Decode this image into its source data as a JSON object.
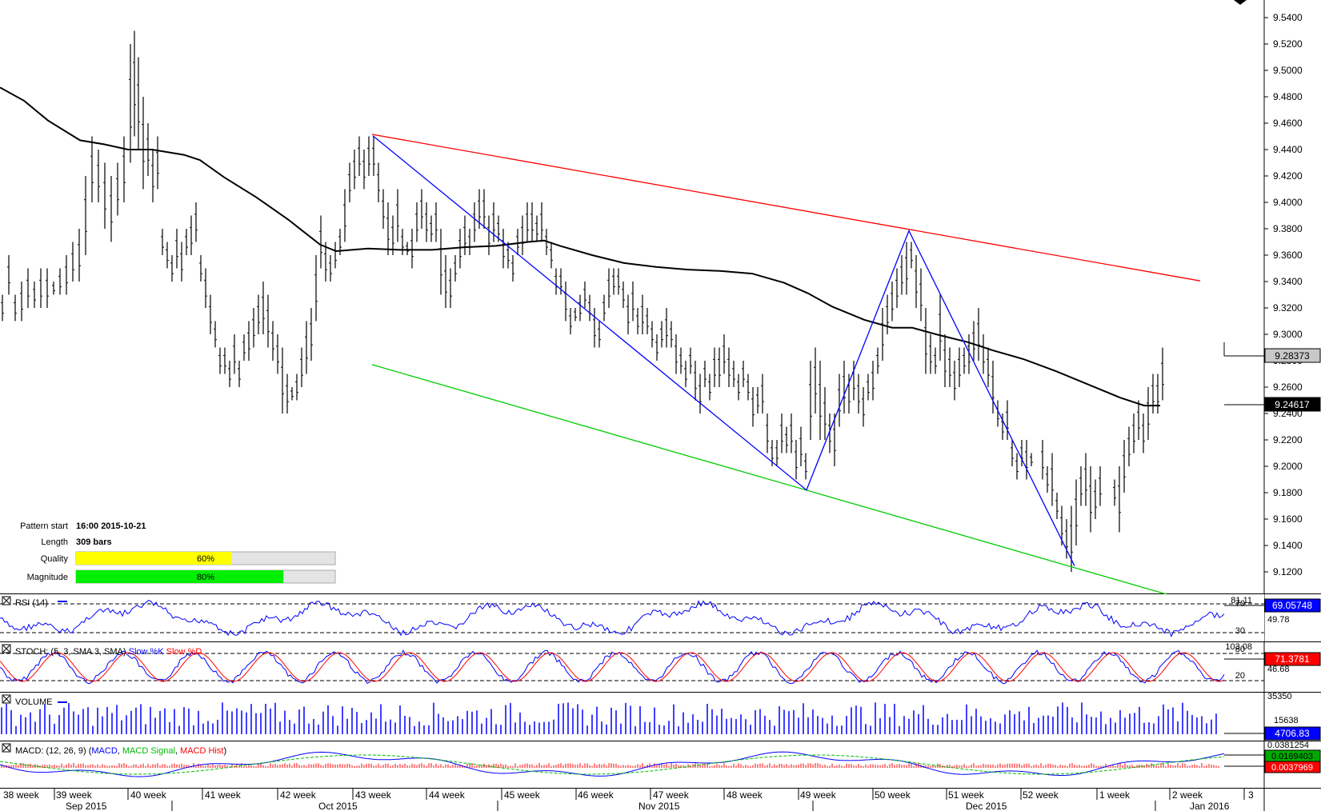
{
  "chart_data": {
    "type": "ohlc",
    "instrument_scale": "price",
    "y_ticks": [
      "9.5400",
      "9.5200",
      "9.5000",
      "9.4800",
      "9.4600",
      "9.4400",
      "9.4200",
      "9.4000",
      "9.3800",
      "9.3600",
      "9.3400",
      "9.3200",
      "9.3000",
      "9.2800",
      "9.2600",
      "9.2400",
      "9.2200",
      "9.2000",
      "9.1800",
      "9.1600",
      "9.1400",
      "9.1200"
    ],
    "ylim": [
      9.11,
      9.555
    ],
    "price_labels": {
      "current": "9.28373",
      "moving_average": "9.24617"
    },
    "moving_average": [
      [
        0,
        9.487
      ],
      [
        30,
        9.477
      ],
      [
        60,
        9.462
      ],
      [
        100,
        9.447
      ],
      [
        130,
        9.444
      ],
      [
        160,
        9.44
      ],
      [
        190,
        9.44
      ],
      [
        230,
        9.436
      ],
      [
        250,
        9.432
      ],
      [
        280,
        9.419
      ],
      [
        320,
        9.404
      ],
      [
        360,
        9.387
      ],
      [
        400,
        9.368
      ],
      [
        420,
        9.363
      ],
      [
        460,
        9.365
      ],
      [
        500,
        9.364
      ],
      [
        540,
        9.364
      ],
      [
        580,
        9.366
      ],
      [
        620,
        9.367
      ],
      [
        660,
        9.37
      ],
      [
        680,
        9.371
      ],
      [
        700,
        9.367
      ],
      [
        740,
        9.36
      ],
      [
        780,
        9.354
      ],
      [
        820,
        9.351
      ],
      [
        860,
        9.349
      ],
      [
        900,
        9.348
      ],
      [
        940,
        9.346
      ],
      [
        980,
        9.339
      ],
      [
        1010,
        9.331
      ],
      [
        1040,
        9.321
      ],
      [
        1080,
        9.311
      ],
      [
        1115,
        9.305
      ],
      [
        1140,
        9.305
      ],
      [
        1170,
        9.3
      ],
      [
        1210,
        9.294
      ],
      [
        1240,
        9.288
      ],
      [
        1280,
        9.281
      ],
      [
        1320,
        9.272
      ],
      [
        1360,
        9.262
      ],
      [
        1400,
        9.252
      ],
      [
        1430,
        9.246
      ],
      [
        1450,
        9.246
      ]
    ],
    "bars": [
      [
        0,
        9.33,
        9.31
      ],
      [
        8,
        9.36,
        9.33
      ],
      [
        16,
        9.33,
        9.31
      ],
      [
        24,
        9.34,
        9.31
      ],
      [
        32,
        9.35,
        9.32
      ],
      [
        40,
        9.34,
        9.32
      ],
      [
        48,
        9.35,
        9.32
      ],
      [
        56,
        9.35,
        9.32
      ],
      [
        64,
        9.34,
        9.33
      ],
      [
        72,
        9.35,
        9.33
      ],
      [
        80,
        9.36,
        9.33
      ],
      [
        88,
        9.37,
        9.34
      ],
      [
        96,
        9.38,
        9.34
      ],
      [
        104,
        9.42,
        9.36
      ],
      [
        112,
        9.45,
        9.4
      ],
      [
        120,
        9.44,
        9.4
      ],
      [
        128,
        9.43,
        9.38
      ],
      [
        136,
        9.42,
        9.37
      ],
      [
        144,
        9.43,
        9.39
      ],
      [
        152,
        9.45,
        9.4
      ],
      [
        160,
        9.52,
        9.43
      ],
      [
        165,
        9.53,
        9.45
      ],
      [
        170,
        9.51,
        9.44
      ],
      [
        176,
        9.48,
        9.41
      ],
      [
        182,
        9.46,
        9.42
      ],
      [
        188,
        9.44,
        9.4
      ],
      [
        194,
        9.45,
        9.41
      ],
      [
        200,
        9.38,
        9.36
      ],
      [
        206,
        9.37,
        9.35
      ],
      [
        212,
        9.36,
        9.34
      ],
      [
        218,
        9.38,
        9.35
      ],
      [
        224,
        9.37,
        9.34
      ],
      [
        230,
        9.38,
        9.36
      ],
      [
        236,
        9.39,
        9.36
      ],
      [
        242,
        9.4,
        9.37
      ],
      [
        248,
        9.36,
        9.34
      ],
      [
        254,
        9.35,
        9.32
      ],
      [
        260,
        9.33,
        9.3
      ],
      [
        266,
        9.31,
        9.29
      ],
      [
        272,
        9.29,
        9.27
      ],
      [
        278,
        9.29,
        9.27
      ],
      [
        284,
        9.28,
        9.26
      ],
      [
        290,
        9.3,
        9.27
      ],
      [
        296,
        9.28,
        9.26
      ],
      [
        302,
        9.3,
        9.28
      ],
      [
        308,
        9.31,
        9.28
      ],
      [
        314,
        9.32,
        9.29
      ],
      [
        320,
        9.33,
        9.3
      ],
      [
        326,
        9.34,
        9.3
      ],
      [
        332,
        9.33,
        9.29
      ],
      [
        338,
        9.31,
        9.28
      ],
      [
        344,
        9.3,
        9.27
      ],
      [
        350,
        9.29,
        9.24
      ],
      [
        356,
        9.27,
        9.24
      ],
      [
        362,
        9.26,
        9.25
      ],
      [
        368,
        9.27,
        9.25
      ],
      [
        374,
        9.29,
        9.26
      ],
      [
        380,
        9.31,
        9.27
      ],
      [
        386,
        9.32,
        9.28
      ],
      [
        392,
        9.36,
        9.31
      ],
      [
        398,
        9.39,
        9.35
      ],
      [
        404,
        9.37,
        9.34
      ],
      [
        410,
        9.36,
        9.34
      ],
      [
        416,
        9.37,
        9.35
      ],
      [
        422,
        9.38,
        9.36
      ],
      [
        428,
        9.41,
        9.37
      ],
      [
        434,
        9.43,
        9.4
      ],
      [
        440,
        9.44,
        9.41
      ],
      [
        446,
        9.45,
        9.42
      ],
      [
        452,
        9.44,
        9.41
      ],
      [
        458,
        9.45,
        9.42
      ],
      [
        464,
        9.45,
        9.42
      ],
      [
        470,
        9.43,
        9.4
      ],
      [
        476,
        9.41,
        9.38
      ],
      [
        482,
        9.4,
        9.36
      ],
      [
        488,
        9.39,
        9.36
      ],
      [
        494,
        9.41,
        9.37
      ],
      [
        500,
        9.38,
        9.36
      ],
      [
        506,
        9.37,
        9.36
      ],
      [
        512,
        9.38,
        9.35
      ],
      [
        518,
        9.4,
        9.37
      ],
      [
        524,
        9.41,
        9.38
      ],
      [
        530,
        9.4,
        9.37
      ],
      [
        536,
        9.39,
        9.37
      ],
      [
        542,
        9.4,
        9.37
      ],
      [
        548,
        9.38,
        9.33
      ],
      [
        554,
        9.36,
        9.32
      ],
      [
        560,
        9.35,
        9.32
      ],
      [
        566,
        9.36,
        9.34
      ],
      [
        572,
        9.38,
        9.35
      ],
      [
        578,
        9.39,
        9.36
      ],
      [
        584,
        9.38,
        9.36
      ],
      [
        590,
        9.4,
        9.37
      ],
      [
        596,
        9.41,
        9.38
      ],
      [
        602,
        9.41,
        9.38
      ],
      [
        608,
        9.39,
        9.36
      ],
      [
        614,
        9.4,
        9.37
      ],
      [
        620,
        9.39,
        9.37
      ],
      [
        626,
        9.38,
        9.35
      ],
      [
        632,
        9.37,
        9.35
      ],
      [
        638,
        9.36,
        9.34
      ],
      [
        644,
        9.38,
        9.36
      ],
      [
        650,
        9.39,
        9.36
      ],
      [
        656,
        9.4,
        9.37
      ],
      [
        662,
        9.4,
        9.37
      ],
      [
        668,
        9.39,
        9.37
      ],
      [
        674,
        9.4,
        9.37
      ],
      [
        680,
        9.38,
        9.36
      ],
      [
        686,
        9.37,
        9.35
      ],
      [
        692,
        9.35,
        9.33
      ],
      [
        698,
        9.35,
        9.33
      ],
      [
        704,
        9.34,
        9.31
      ],
      [
        710,
        9.32,
        9.3
      ],
      [
        716,
        9.32,
        9.31
      ],
      [
        722,
        9.33,
        9.31
      ],
      [
        728,
        9.34,
        9.32
      ],
      [
        734,
        9.33,
        9.31
      ],
      [
        740,
        9.32,
        9.29
      ],
      [
        746,
        9.31,
        9.29
      ],
      [
        752,
        9.33,
        9.31
      ],
      [
        758,
        9.35,
        9.32
      ],
      [
        764,
        9.35,
        9.33
      ],
      [
        770,
        9.35,
        9.33
      ],
      [
        776,
        9.34,
        9.32
      ],
      [
        782,
        9.33,
        9.3
      ],
      [
        788,
        9.34,
        9.31
      ],
      [
        794,
        9.32,
        9.3
      ],
      [
        800,
        9.33,
        9.3
      ],
      [
        806,
        9.32,
        9.3
      ],
      [
        812,
        9.31,
        9.29
      ],
      [
        818,
        9.3,
        9.28
      ],
      [
        824,
        9.31,
        9.29
      ],
      [
        830,
        9.32,
        9.29
      ],
      [
        836,
        9.31,
        9.29
      ],
      [
        842,
        9.3,
        9.27
      ],
      [
        848,
        9.29,
        9.27
      ],
      [
        854,
        9.28,
        9.26
      ],
      [
        860,
        9.29,
        9.27
      ],
      [
        866,
        9.28,
        9.25
      ],
      [
        872,
        9.27,
        9.24
      ],
      [
        878,
        9.28,
        9.26
      ],
      [
        884,
        9.27,
        9.25
      ],
      [
        890,
        9.29,
        9.26
      ],
      [
        896,
        9.29,
        9.26
      ],
      [
        902,
        9.3,
        9.27
      ],
      [
        908,
        9.29,
        9.26
      ],
      [
        914,
        9.28,
        9.26
      ],
      [
        920,
        9.27,
        9.25
      ],
      [
        926,
        9.28,
        9.26
      ],
      [
        932,
        9.27,
        9.25
      ],
      [
        938,
        9.26,
        9.23
      ],
      [
        944,
        9.26,
        9.24
      ],
      [
        950,
        9.27,
        9.24
      ],
      [
        956,
        9.24,
        9.21
      ],
      [
        962,
        9.22,
        9.2
      ],
      [
        968,
        9.22,
        9.2
      ],
      [
        974,
        9.24,
        9.21
      ],
      [
        980,
        9.23,
        9.21
      ],
      [
        986,
        9.24,
        9.21
      ],
      [
        992,
        9.22,
        9.19
      ],
      [
        998,
        9.23,
        9.2
      ],
      [
        1004,
        9.21,
        9.19
      ],
      [
        1010,
        9.28,
        9.22
      ],
      [
        1016,
        9.29,
        9.24
      ],
      [
        1022,
        9.28,
        9.22
      ],
      [
        1028,
        9.26,
        9.22
      ],
      [
        1034,
        9.24,
        9.21
      ],
      [
        1040,
        9.24,
        9.2
      ],
      [
        1046,
        9.27,
        9.23
      ],
      [
        1052,
        9.28,
        9.24
      ],
      [
        1058,
        9.27,
        9.24
      ],
      [
        1064,
        9.28,
        9.25
      ],
      [
        1070,
        9.27,
        9.24
      ],
      [
        1076,
        9.26,
        9.23
      ],
      [
        1082,
        9.27,
        9.25
      ],
      [
        1088,
        9.28,
        9.25
      ],
      [
        1094,
        9.29,
        9.27
      ],
      [
        1100,
        9.32,
        9.28
      ],
      [
        1106,
        9.33,
        9.3
      ],
      [
        1112,
        9.34,
        9.31
      ],
      [
        1118,
        9.35,
        9.32
      ],
      [
        1124,
        9.36,
        9.33
      ],
      [
        1130,
        9.37,
        9.33
      ],
      [
        1136,
        9.37,
        9.35
      ],
      [
        1142,
        9.36,
        9.32
      ],
      [
        1148,
        9.35,
        9.31
      ],
      [
        1154,
        9.32,
        9.27
      ],
      [
        1160,
        9.3,
        9.27
      ],
      [
        1166,
        9.29,
        9.27
      ],
      [
        1172,
        9.33,
        9.28
      ],
      [
        1178,
        9.3,
        9.26
      ],
      [
        1184,
        9.29,
        9.26
      ],
      [
        1190,
        9.28,
        9.25
      ],
      [
        1196,
        9.29,
        9.26
      ],
      [
        1202,
        9.29,
        9.27
      ],
      [
        1208,
        9.3,
        9.27
      ],
      [
        1214,
        9.31,
        9.28
      ],
      [
        1220,
        9.32,
        9.28
      ],
      [
        1226,
        9.3,
        9.27
      ],
      [
        1232,
        9.29,
        9.26
      ],
      [
        1238,
        9.28,
        9.24
      ],
      [
        1244,
        9.25,
        9.23
      ],
      [
        1250,
        9.24,
        9.22
      ],
      [
        1256,
        9.25,
        9.22
      ],
      [
        1262,
        9.22,
        9.2
      ],
      [
        1268,
        9.21,
        9.19
      ],
      [
        1274,
        9.22,
        9.2
      ],
      [
        1280,
        9.22,
        9.19
      ],
      [
        1286,
        9.21,
        9.2
      ],
      [
        1300,
        9.22,
        9.19
      ],
      [
        1306,
        9.2,
        9.18
      ],
      [
        1312,
        9.21,
        9.17
      ],
      [
        1318,
        9.18,
        9.16
      ],
      [
        1324,
        9.17,
        9.14
      ],
      [
        1330,
        9.16,
        9.13
      ],
      [
        1336,
        9.17,
        9.12
      ],
      [
        1342,
        9.19,
        9.14
      ],
      [
        1348,
        9.2,
        9.17
      ],
      [
        1354,
        9.21,
        9.17
      ],
      [
        1360,
        9.2,
        9.15
      ],
      [
        1366,
        9.19,
        9.16
      ],
      [
        1372,
        9.2,
        9.17
      ],
      [
        1390,
        9.19,
        9.17
      ],
      [
        1396,
        9.2,
        9.15
      ],
      [
        1402,
        9.22,
        9.18
      ],
      [
        1408,
        9.23,
        9.2
      ],
      [
        1414,
        9.24,
        9.21
      ],
      [
        1420,
        9.25,
        9.22
      ],
      [
        1426,
        9.24,
        9.21
      ],
      [
        1432,
        9.26,
        9.22
      ],
      [
        1438,
        9.27,
        9.24
      ],
      [
        1444,
        9.27,
        9.24
      ],
      [
        1450,
        9.29,
        9.25
      ]
    ],
    "pattern_lines": [
      {
        "color": "#ff0000",
        "points": [
          [
            465,
            9.4515
          ],
          [
            1500,
            9.3405
          ]
        ]
      },
      {
        "color": "#00cc00",
        "points": [
          [
            465,
            9.277
          ],
          [
            1458,
            9.103
          ]
        ]
      },
      {
        "color": "#0000ff",
        "points": [
          [
            466,
            9.4505
          ],
          [
            1008,
            9.182
          ],
          [
            1136,
            9.3785
          ],
          [
            1343,
            9.1245
          ]
        ]
      }
    ],
    "x_axis": {
      "weeks": [
        "38 week",
        "39 week",
        "40 week",
        "41 week",
        "42 week",
        "43 week",
        "44 week",
        "45 week",
        "46 week",
        "47 week",
        "48 week",
        "49 week",
        "50 week",
        "51 week",
        "52 week",
        "1 week",
        "2 week",
        "3"
      ],
      "months": [
        "Sep 2015",
        "Oct 2015",
        "Nov 2015",
        "Dec 2015",
        "Jan 2016"
      ]
    },
    "pattern_info": {
      "pattern_start_label": "Pattern start",
      "pattern_start_value": "16:00 2015-10-21",
      "length_label": "Length",
      "length_value": "309 bars",
      "quality_label": "Quality",
      "quality_value": "60%",
      "quality_fraction": 0.6,
      "magnitude_label": "Magnitude",
      "magnitude_value": "80%",
      "magnitude_fraction": 0.8
    },
    "indicators": {
      "rsi": {
        "title": "RSI (14)",
        "levels": [
          "70",
          "30"
        ],
        "mid": "49.78",
        "top": "81.11",
        "value": "69.05748",
        "value_color": "#0000ff"
      },
      "stoch": {
        "title_prefix": "STOCH: (5, 3, SMA 3, SMA)",
        "fast": "Slow %K",
        "slow": "Slow %D",
        "levels": [
          "80",
          "20"
        ],
        "top": "103.08",
        "mid": "46.68",
        "value": "71.3781",
        "value_color": "#ff0000"
      },
      "volume": {
        "title": "VOLUME",
        "top": "35350",
        "mid": "15638",
        "value": "4706.83",
        "value_color": "#0000ff"
      },
      "macd": {
        "title_prefix": "MACD: (12, 26, 9)",
        "line": "MACD",
        "signal": "MACD Signal",
        "hist": "MACD Hist",
        "top": "0.0381254",
        "v1": "0.0169403",
        "v2": "0.0037969"
      }
    }
  }
}
